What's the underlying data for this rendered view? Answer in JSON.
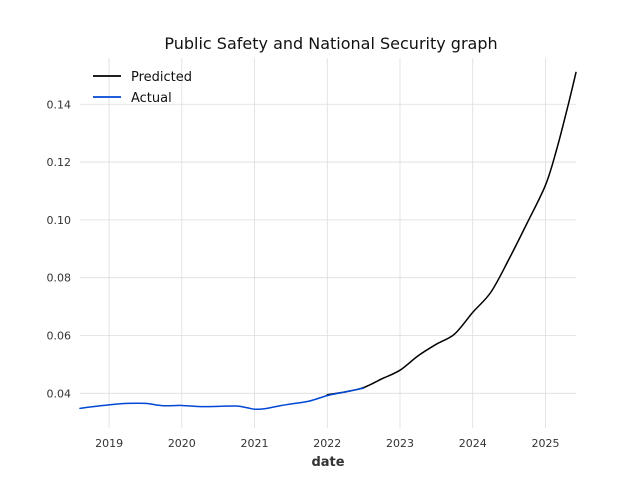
{
  "chart_data": {
    "type": "line",
    "title": "Public Safety and National Security graph",
    "xlabel": "date",
    "ylabel": "",
    "xlim": [
      2018.6,
      2025.42
    ],
    "ylim": [
      0.028,
      0.156
    ],
    "xticks": [
      2019,
      2020,
      2021,
      2022,
      2023,
      2024,
      2025
    ],
    "xtick_labels": [
      "2019",
      "2020",
      "2021",
      "2022",
      "2023",
      "2024",
      "2025"
    ],
    "yticks": [
      0.04,
      0.06,
      0.08,
      0.1,
      0.12,
      0.14
    ],
    "ytick_labels": [
      "0.04",
      "0.06",
      "0.08",
      "0.10",
      "0.12",
      "0.14"
    ],
    "grid": true,
    "legend_position": "top-left",
    "series": [
      {
        "name": "Predicted",
        "color": "#000000",
        "x": [
          2022.0,
          2022.25,
          2022.5,
          2022.75,
          2023.0,
          2023.25,
          2023.5,
          2023.75,
          2024.0,
          2024.25,
          2024.5,
          2024.75,
          2025.0,
          2025.15,
          2025.3,
          2025.42
        ],
        "y": [
          0.0395,
          0.0405,
          0.042,
          0.045,
          0.048,
          0.053,
          0.057,
          0.0605,
          0.068,
          0.075,
          0.0865,
          0.099,
          0.112,
          0.124,
          0.1385,
          0.151
        ]
      },
      {
        "name": "Actual",
        "color": "#0047d6",
        "x": [
          2018.6,
          2018.75,
          2019.0,
          2019.25,
          2019.5,
          2019.75,
          2020.0,
          2020.25,
          2020.5,
          2020.75,
          2020.9,
          2021.0,
          2021.15,
          2021.35,
          2021.5,
          2021.75,
          2022.0,
          2022.25,
          2022.5
        ],
        "y": [
          0.0348,
          0.0353,
          0.036,
          0.0365,
          0.0365,
          0.0357,
          0.0358,
          0.0354,
          0.0355,
          0.0356,
          0.035,
          0.0345,
          0.0347,
          0.0357,
          0.0363,
          0.0373,
          0.0392,
          0.0405,
          0.0418
        ]
      }
    ]
  }
}
